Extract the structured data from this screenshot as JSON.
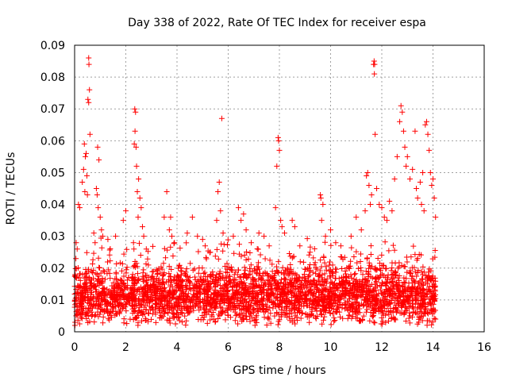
{
  "chart_data": {
    "type": "scatter",
    "title": "Day 338 of 2022, Rate Of TEC Index for receiver espa",
    "xlabel": "GPS time / hours",
    "ylabel": "ROTI / TECUs",
    "xlim": [
      0,
      16
    ],
    "ylim": [
      0,
      0.09
    ],
    "xticks": [
      0,
      2,
      4,
      6,
      8,
      10,
      12,
      14,
      16
    ],
    "yticks": [
      0,
      0.01,
      0.02,
      0.03,
      0.04,
      0.05,
      0.06,
      0.07,
      0.08,
      0.09
    ],
    "xtick_labels": [
      "0",
      "2",
      "4",
      "6",
      "8",
      "10",
      "12",
      "14",
      "16"
    ],
    "ytick_labels": [
      "0",
      "0.01",
      "0.02",
      "0.03",
      "0.04",
      "0.05",
      "0.06",
      "0.07",
      "0.08",
      "0.09"
    ],
    "grid": true,
    "marker": "+",
    "color": "#ff0000",
    "series": [
      {
        "name": "ROTI",
        "points": [
          [
            0.55,
            0.086
          ],
          [
            0.56,
            0.084
          ],
          [
            0.58,
            0.076
          ],
          [
            0.52,
            0.073
          ],
          [
            0.55,
            0.072
          ],
          [
            0.6,
            0.062
          ],
          [
            0.38,
            0.059
          ],
          [
            0.42,
            0.055
          ],
          [
            0.35,
            0.051
          ],
          [
            0.45,
            0.056
          ],
          [
            0.48,
            0.049
          ],
          [
            0.3,
            0.047
          ],
          [
            0.4,
            0.044
          ],
          [
            0.5,
            0.043
          ],
          [
            0.15,
            0.04
          ],
          [
            0.2,
            0.039
          ],
          [
            0.9,
            0.058
          ],
          [
            0.95,
            0.054
          ],
          [
            0.85,
            0.045
          ],
          [
            0.88,
            0.043
          ],
          [
            0.92,
            0.039
          ],
          [
            1.0,
            0.036
          ],
          [
            1.05,
            0.032
          ],
          [
            0.75,
            0.031
          ],
          [
            0.8,
            0.028
          ],
          [
            1.1,
            0.03
          ],
          [
            0.1,
            0.026
          ],
          [
            0.05,
            0.023
          ],
          [
            1.3,
            0.029
          ],
          [
            1.6,
            0.03
          ],
          [
            1.9,
            0.035
          ],
          [
            2.0,
            0.038
          ],
          [
            2.35,
            0.07
          ],
          [
            2.38,
            0.069
          ],
          [
            2.36,
            0.063
          ],
          [
            2.33,
            0.059
          ],
          [
            2.4,
            0.058
          ],
          [
            2.42,
            0.052
          ],
          [
            2.5,
            0.048
          ],
          [
            2.45,
            0.044
          ],
          [
            2.55,
            0.042
          ],
          [
            2.6,
            0.039
          ],
          [
            2.48,
            0.036
          ],
          [
            2.65,
            0.033
          ],
          [
            2.7,
            0.03
          ],
          [
            2.3,
            0.028
          ],
          [
            2.8,
            0.026
          ],
          [
            3.5,
            0.036
          ],
          [
            3.6,
            0.044
          ],
          [
            3.7,
            0.032
          ],
          [
            3.75,
            0.036
          ],
          [
            3.8,
            0.03
          ],
          [
            3.9,
            0.028
          ],
          [
            4.4,
            0.031
          ],
          [
            4.6,
            0.036
          ],
          [
            4.8,
            0.03
          ],
          [
            5.0,
            0.029
          ],
          [
            5.1,
            0.027
          ],
          [
            5.3,
            0.025
          ],
          [
            5.6,
            0.044
          ],
          [
            5.65,
            0.047
          ],
          [
            5.75,
            0.067
          ],
          [
            5.7,
            0.038
          ],
          [
            5.55,
            0.035
          ],
          [
            5.8,
            0.031
          ],
          [
            6.2,
            0.03
          ],
          [
            6.4,
            0.039
          ],
          [
            6.6,
            0.037
          ],
          [
            6.5,
            0.035
          ],
          [
            6.7,
            0.032
          ],
          [
            6.9,
            0.028
          ],
          [
            7.2,
            0.031
          ],
          [
            7.4,
            0.03
          ],
          [
            7.6,
            0.027
          ],
          [
            7.9,
            0.052
          ],
          [
            7.95,
            0.061
          ],
          [
            7.97,
            0.06
          ],
          [
            8.0,
            0.057
          ],
          [
            7.85,
            0.039
          ],
          [
            8.05,
            0.035
          ],
          [
            8.1,
            0.033
          ],
          [
            8.2,
            0.031
          ],
          [
            8.5,
            0.035
          ],
          [
            8.6,
            0.033
          ],
          [
            8.8,
            0.027
          ],
          [
            9.2,
            0.025
          ],
          [
            9.6,
            0.043
          ],
          [
            9.62,
            0.042
          ],
          [
            9.7,
            0.04
          ],
          [
            9.65,
            0.035
          ],
          [
            9.8,
            0.03
          ],
          [
            10.0,
            0.032
          ],
          [
            10.2,
            0.028
          ],
          [
            10.4,
            0.027
          ],
          [
            10.8,
            0.03
          ],
          [
            11.0,
            0.036
          ],
          [
            11.2,
            0.032
          ],
          [
            11.4,
            0.049
          ],
          [
            11.45,
            0.05
          ],
          [
            11.5,
            0.046
          ],
          [
            11.6,
            0.043
          ],
          [
            11.55,
            0.04
          ],
          [
            11.35,
            0.038
          ],
          [
            11.7,
            0.085
          ],
          [
            11.72,
            0.084
          ],
          [
            11.68,
            0.084
          ],
          [
            11.71,
            0.081
          ],
          [
            11.74,
            0.062
          ],
          [
            11.8,
            0.045
          ],
          [
            11.9,
            0.04
          ],
          [
            12.0,
            0.039
          ],
          [
            12.1,
            0.036
          ],
          [
            12.3,
            0.041
          ],
          [
            12.5,
            0.048
          ],
          [
            12.6,
            0.055
          ],
          [
            12.7,
            0.066
          ],
          [
            12.75,
            0.071
          ],
          [
            12.8,
            0.069
          ],
          [
            12.85,
            0.063
          ],
          [
            12.9,
            0.058
          ],
          [
            12.95,
            0.052
          ],
          [
            13.0,
            0.055
          ],
          [
            13.1,
            0.048
          ],
          [
            13.2,
            0.051
          ],
          [
            13.3,
            0.063
          ],
          [
            13.35,
            0.045
          ],
          [
            13.4,
            0.042
          ],
          [
            13.5,
            0.047
          ],
          [
            13.6,
            0.05
          ],
          [
            13.7,
            0.065
          ],
          [
            13.75,
            0.066
          ],
          [
            13.8,
            0.062
          ],
          [
            13.85,
            0.057
          ],
          [
            13.9,
            0.05
          ],
          [
            13.95,
            0.046
          ],
          [
            14.0,
            0.048
          ],
          [
            14.05,
            0.042
          ],
          [
            14.1,
            0.036
          ],
          [
            13.55,
            0.04
          ],
          [
            13.65,
            0.038
          ],
          [
            12.4,
            0.038
          ],
          [
            12.2,
            0.035
          ],
          [
            14.1,
            0.004
          ],
          [
            0.02,
            0.003
          ]
        ],
        "bulk": {
          "note": "dense band of points across 0–14.1 h",
          "x_range": [
            0,
            14.1
          ],
          "base": 0.011,
          "spread": 0.006,
          "count": 3200
        }
      }
    ]
  }
}
